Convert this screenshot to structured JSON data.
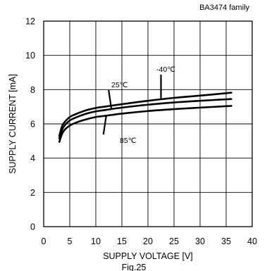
{
  "chart_data": {
    "type": "line",
    "title": "",
    "corner_note": "BA3474 family",
    "xlabel": "SUPPLY VOLTAGE [V]",
    "ylabel": "SUPPLY CURRENT [mA]",
    "xlim": [
      0,
      40
    ],
    "ylim": [
      0,
      12
    ],
    "x_ticks": [
      0,
      5,
      10,
      15,
      20,
      25,
      30,
      35,
      40
    ],
    "y_ticks": [
      0,
      2,
      4,
      6,
      8,
      10,
      12
    ],
    "grid": true,
    "series": [
      {
        "name": "-40℃",
        "x": [
          3,
          3.5,
          4,
          5,
          6,
          8,
          10,
          12,
          15,
          20,
          25,
          30,
          36
        ],
        "y": [
          5.3,
          5.85,
          6.1,
          6.4,
          6.55,
          6.78,
          6.93,
          7.02,
          7.15,
          7.35,
          7.52,
          7.65,
          7.82
        ]
      },
      {
        "name": "25℃",
        "x": [
          3,
          3.5,
          4,
          5,
          6,
          8,
          10,
          12,
          15,
          20,
          25,
          30,
          36
        ],
        "y": [
          5.15,
          5.65,
          5.9,
          6.2,
          6.35,
          6.58,
          6.73,
          6.82,
          6.95,
          7.12,
          7.25,
          7.35,
          7.45
        ]
      },
      {
        "name": "85℃",
        "x": [
          3,
          3.5,
          4,
          5,
          6,
          8,
          10,
          12,
          15,
          20,
          25,
          30,
          36
        ],
        "y": [
          4.95,
          5.4,
          5.65,
          5.9,
          6.05,
          6.25,
          6.4,
          6.48,
          6.6,
          6.75,
          6.86,
          6.95,
          7.05
        ]
      }
    ],
    "figure_caption": "Fig.25"
  }
}
